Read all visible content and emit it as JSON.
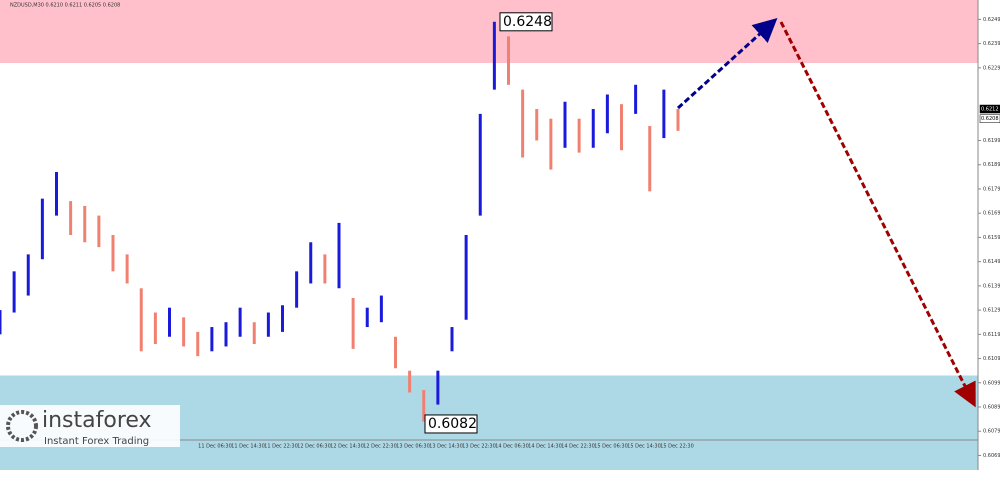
{
  "chart_data": {
    "type": "range-bar",
    "title": "NZDUSD,M30 0.6210 0.6211 0.6205 0.6208",
    "ylim": [
      0.6063,
      0.6257
    ],
    "yticks": [
      0.6249,
      0.6239,
      0.6229,
      0.6199,
      0.6189,
      0.6179,
      0.6169,
      0.6159,
      0.6149,
      0.6139,
      0.6129,
      0.6119,
      0.6109,
      0.6099,
      0.6089,
      0.6079,
      0.6069
    ],
    "categories": [
      "11 Dec 06:30",
      "11 Dec 14:30",
      "11 Dec 22:30",
      "12 Dec 06:30",
      "12 Dec 14:30",
      "12 Dec 22:30",
      "13 Dec 06:30",
      "13 Dec 14:30",
      "13 Dec 22:30",
      "14 Dec 06:30",
      "14 Dec 14:30",
      "14 Dec 22:30",
      "15 Dec 06:30",
      "15 Dec 14:30",
      "15 Dec 22:30"
    ],
    "lows": [
      0.6119,
      0.6128,
      0.6135,
      0.615,
      0.6168,
      0.616,
      0.6157,
      0.6155,
      0.6145,
      0.614,
      0.6112,
      0.6115,
      0.6118,
      0.6114,
      0.611,
      0.6112,
      0.6114,
      0.6118,
      0.6115,
      0.6118,
      0.612,
      0.613,
      0.614,
      0.614,
      0.6138,
      0.6113,
      0.6122,
      0.6124,
      0.6105,
      0.6095,
      0.6083,
      0.609,
      0.6112,
      0.6125,
      0.6168,
      0.622,
      0.6222,
      0.6192,
      0.6199,
      0.6187,
      0.6196,
      0.6194,
      0.6196,
      0.6202,
      0.6195,
      0.621,
      0.6178,
      0.62,
      0.6203
    ],
    "highs": [
      0.6129,
      0.6145,
      0.6152,
      0.6175,
      0.6186,
      0.6174,
      0.6172,
      0.6168,
      0.616,
      0.6152,
      0.6138,
      0.6128,
      0.613,
      0.6126,
      0.612,
      0.6122,
      0.6124,
      0.613,
      0.6124,
      0.6128,
      0.6131,
      0.6145,
      0.6157,
      0.6152,
      0.6165,
      0.6134,
      0.613,
      0.6135,
      0.6118,
      0.6104,
      0.6096,
      0.6104,
      0.6122,
      0.616,
      0.621,
      0.6248,
      0.6242,
      0.622,
      0.6212,
      0.6208,
      0.6215,
      0.6208,
      0.6212,
      0.6218,
      0.6214,
      0.6222,
      0.6205,
      0.622,
      0.6212
    ],
    "up_color": "#1a1adb",
    "down_color": "#f08070",
    "zones": [
      {
        "from": 0.6231,
        "to": 0.6257,
        "color": "#ffc0cb"
      },
      {
        "from": 0.6063,
        "to": 0.6102,
        "color": "#add8e6"
      }
    ],
    "annotations": [
      {
        "value": 0.6248,
        "label": "0.6248"
      },
      {
        "value": 0.6082,
        "label": "0.6082"
      }
    ],
    "price_labels": [
      {
        "value": 0.6212,
        "label": "0.6212"
      },
      {
        "value": 0.6208,
        "label": "0.6208"
      }
    ]
  },
  "branding": {
    "name": "instaforex",
    "tagline": "Instant Forex Trading"
  }
}
